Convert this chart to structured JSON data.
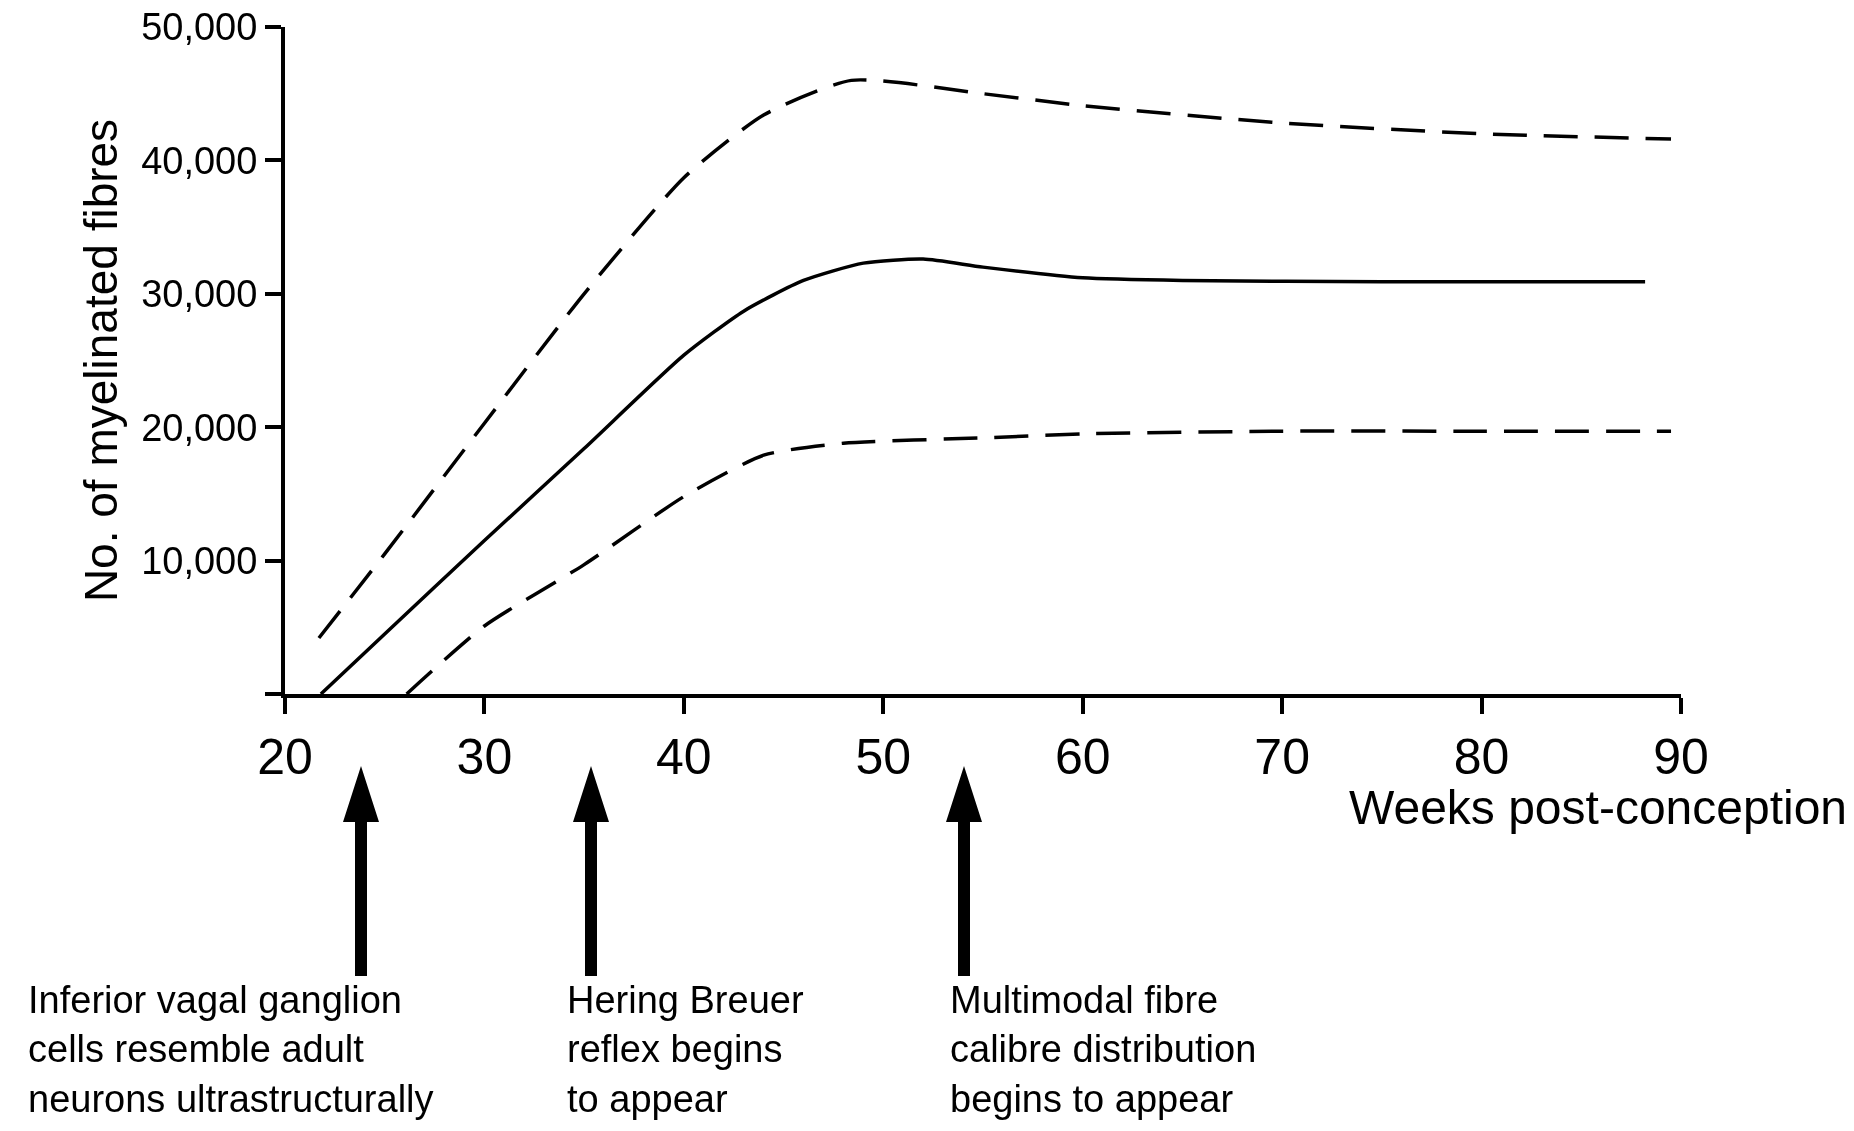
{
  "chart_data": {
    "type": "line",
    "xlabel": "Weeks post-conception",
    "ylabel": "No. of myelinated fibres",
    "xlim": [
      20,
      90
    ],
    "xticks": [
      20,
      30,
      40,
      50,
      60,
      70,
      80,
      90
    ],
    "ylim": [
      0,
      50000
    ],
    "yticks": [
      {
        "value": 0,
        "label": null
      },
      {
        "value": 10000,
        "label": "10,000"
      },
      {
        "value": 20000,
        "label": "20,000"
      },
      {
        "value": 30000,
        "label": "30,000"
      },
      {
        "value": 40000,
        "label": "40,000"
      },
      {
        "value": 50000,
        "label": "50,000"
      }
    ],
    "grid": false,
    "marker": "none",
    "series": [
      {
        "color": "#000000",
        "line_style": "dashed",
        "x": [
          21.7,
          25,
          30,
          35,
          40,
          44,
          48.4,
          55,
          60,
          70,
          80,
          89.5
        ],
        "values": [
          4200,
          10500,
          20300,
          30000,
          38700,
          43400,
          46000,
          45000,
          44100,
          42800,
          42000,
          41600
        ]
      },
      {
        "color": "#000000",
        "line_style": "solid",
        "x": [
          21.8,
          25,
          30,
          35,
          40,
          43,
          46,
          49,
          52,
          55,
          60,
          65,
          75,
          88.2
        ],
        "values": [
          0,
          4500,
          11500,
          18400,
          25400,
          28700,
          31000,
          32300,
          32600,
          32000,
          31200,
          31000,
          30900,
          30900
        ]
      },
      {
        "color": "#000000",
        "line_style": "dashed",
        "x": [
          26.1,
          30,
          35,
          40,
          44,
          48,
          55,
          60,
          70,
          80,
          89.5
        ],
        "values": [
          0,
          5100,
          9700,
          14800,
          17900,
          18800,
          19200,
          19500,
          19700,
          19700,
          19700
        ]
      }
    ],
    "annotations": [
      "Inferior vagal ganglion\ncells resemble adult\nneurons ultrastructurally",
      "Hering Breuer\nreflex begins\nto appear",
      "Multimodal fibre\ncalibre distribution\nbegins to appear"
    ]
  }
}
